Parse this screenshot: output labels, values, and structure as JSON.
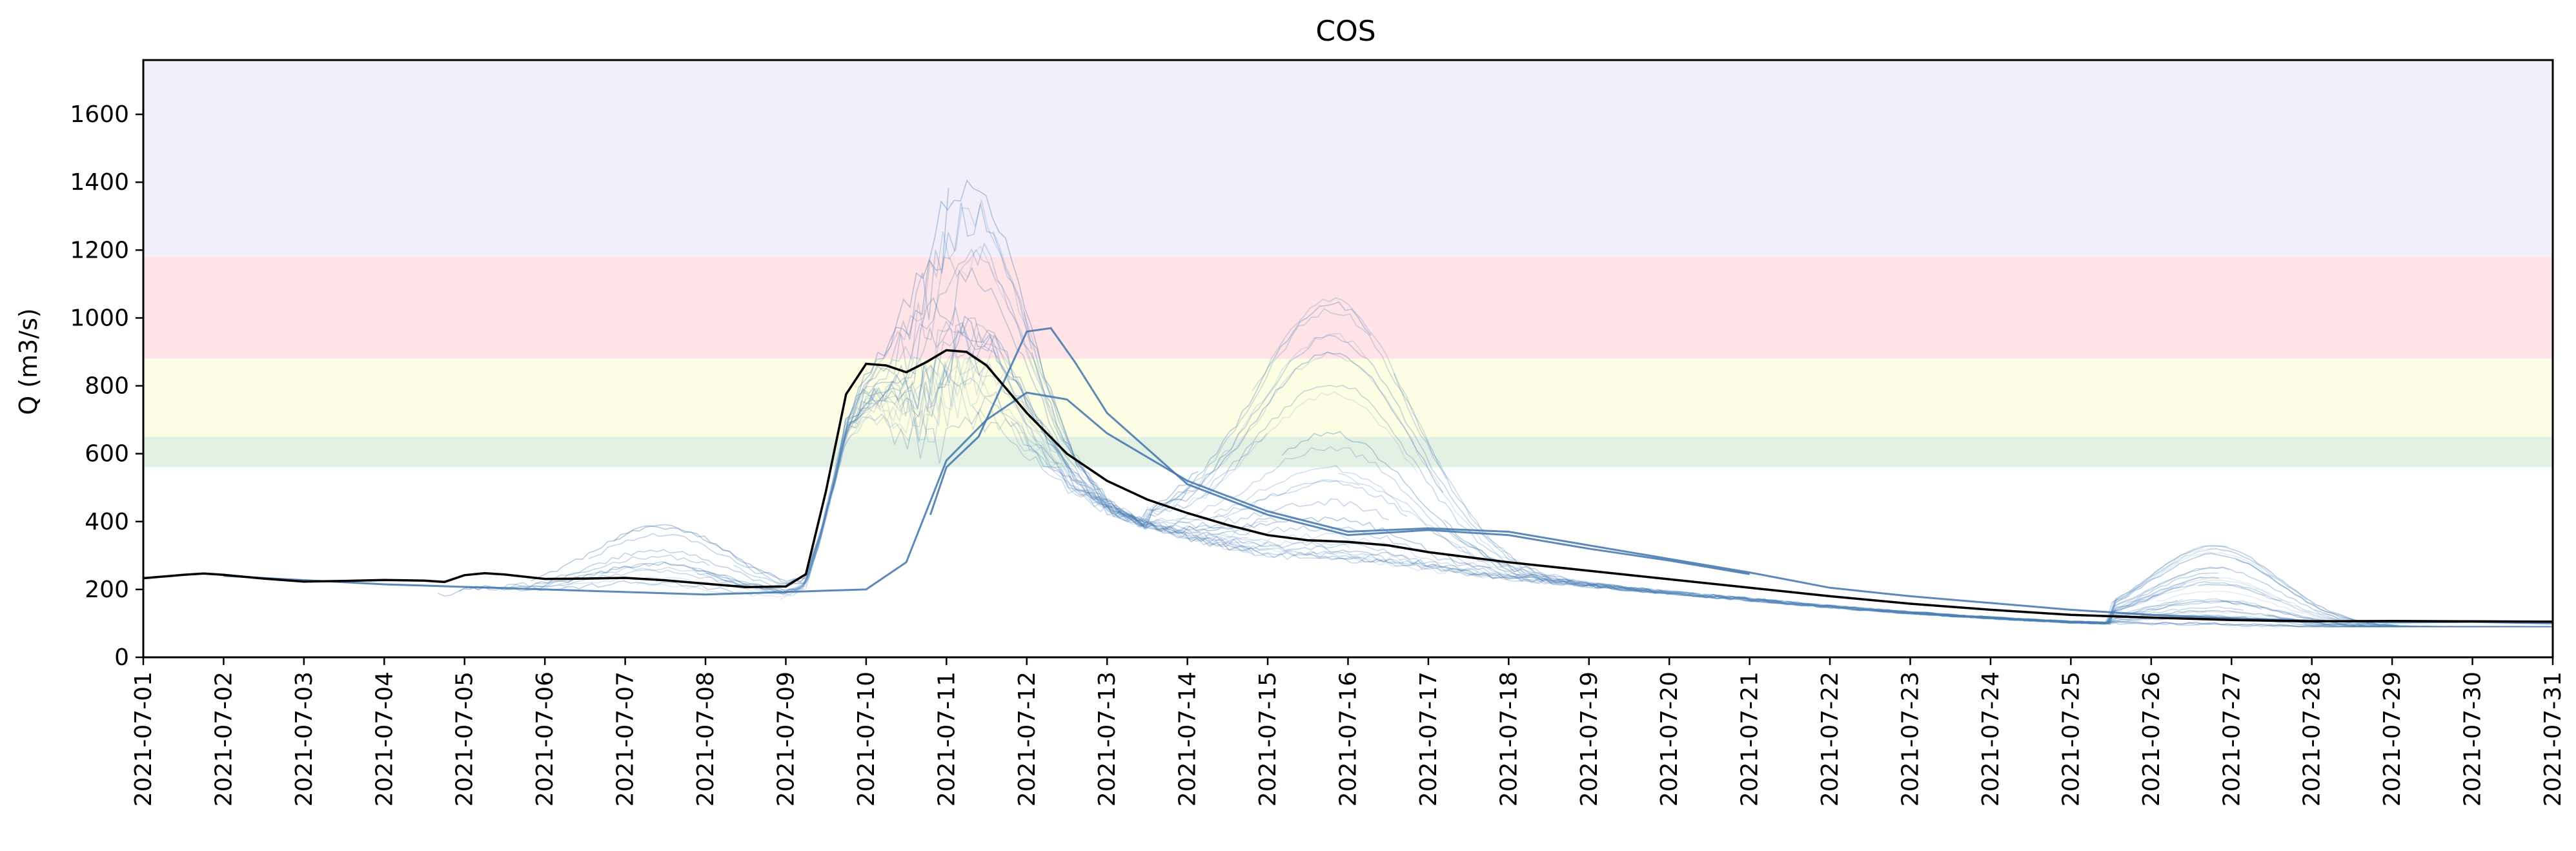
{
  "chart_data": {
    "type": "line",
    "title": "COS",
    "xlabel": "",
    "ylabel": "Q (m3/s)",
    "ylim": [
      0,
      1760
    ],
    "yticks": [
      0,
      200,
      400,
      600,
      800,
      1000,
      1200,
      1400,
      1600
    ],
    "xlim": [
      "2021-07-01",
      "2021-07-31"
    ],
    "xticks": [
      "2021-07-01",
      "2021-07-02",
      "2021-07-03",
      "2021-07-04",
      "2021-07-05",
      "2021-07-06",
      "2021-07-07",
      "2021-07-08",
      "2021-07-09",
      "2021-07-10",
      "2021-07-11",
      "2021-07-12",
      "2021-07-13",
      "2021-07-14",
      "2021-07-15",
      "2021-07-16",
      "2021-07-17",
      "2021-07-18",
      "2021-07-19",
      "2021-07-20",
      "2021-07-21",
      "2021-07-22",
      "2021-07-23",
      "2021-07-24",
      "2021-07-25",
      "2021-07-26",
      "2021-07-27",
      "2021-07-28",
      "2021-07-29",
      "2021-07-30",
      "2021-07-31"
    ],
    "grid": false,
    "threshold_bands": [
      {
        "from": 560,
        "to": 650,
        "color": "#e3f1e4"
      },
      {
        "from": 880,
        "to": 1180,
        "color": "#ffe3e7"
      },
      {
        "from": 650,
        "to": 880,
        "color": "#fdfde3"
      },
      {
        "from": 1180,
        "to": 1760,
        "color": "#f2effb"
      }
    ],
    "observed": {
      "color": "#000000",
      "x": [
        "2021-07-01T00:00",
        "2021-07-01T12:00",
        "2021-07-01T18:00",
        "2021-07-02T00:00",
        "2021-07-02T12:00",
        "2021-07-03T00:00",
        "2021-07-03T12:00",
        "2021-07-04T00:00",
        "2021-07-04T12:00",
        "2021-07-04T18:00",
        "2021-07-05T00:00",
        "2021-07-05T06:00",
        "2021-07-05T12:00",
        "2021-07-06T00:00",
        "2021-07-06T12:00",
        "2021-07-07T00:00",
        "2021-07-07T12:00",
        "2021-07-08T00:00",
        "2021-07-08T12:00",
        "2021-07-09T00:00",
        "2021-07-09T06:00",
        "2021-07-09T12:00",
        "2021-07-09T18:00",
        "2021-07-10T00:00",
        "2021-07-10T06:00",
        "2021-07-10T12:00",
        "2021-07-10T18:00",
        "2021-07-11T00:00",
        "2021-07-11T06:00",
        "2021-07-11T12:00",
        "2021-07-12T00:00",
        "2021-07-12T12:00",
        "2021-07-13T00:00",
        "2021-07-13T12:00",
        "2021-07-14T00:00",
        "2021-07-14T12:00",
        "2021-07-15T00:00",
        "2021-07-15T12:00",
        "2021-07-16T00:00",
        "2021-07-16T12:00",
        "2021-07-17T00:00",
        "2021-07-17T12:00",
        "2021-07-18T00:00",
        "2021-07-19T00:00",
        "2021-07-20T00:00",
        "2021-07-21T00:00",
        "2021-07-22T00:00",
        "2021-07-23T00:00",
        "2021-07-24T00:00",
        "2021-07-25T00:00",
        "2021-07-26T00:00",
        "2021-07-27T00:00",
        "2021-07-28T00:00",
        "2021-07-29T00:00",
        "2021-07-30T00:00",
        "2021-07-31T00:00"
      ],
      "y": [
        233,
        243,
        247,
        243,
        232,
        223,
        225,
        228,
        226,
        222,
        242,
        248,
        244,
        231,
        232,
        234,
        227,
        217,
        207,
        209,
        245,
        490,
        775,
        865,
        860,
        840,
        870,
        905,
        900,
        860,
        720,
        600,
        520,
        465,
        425,
        390,
        360,
        345,
        340,
        330,
        310,
        295,
        280,
        255,
        230,
        205,
        180,
        158,
        140,
        125,
        117,
        110,
        106,
        107,
        106,
        105
      ]
    },
    "ensemble": {
      "color": "#4a7fb5",
      "count": 120
    }
  }
}
